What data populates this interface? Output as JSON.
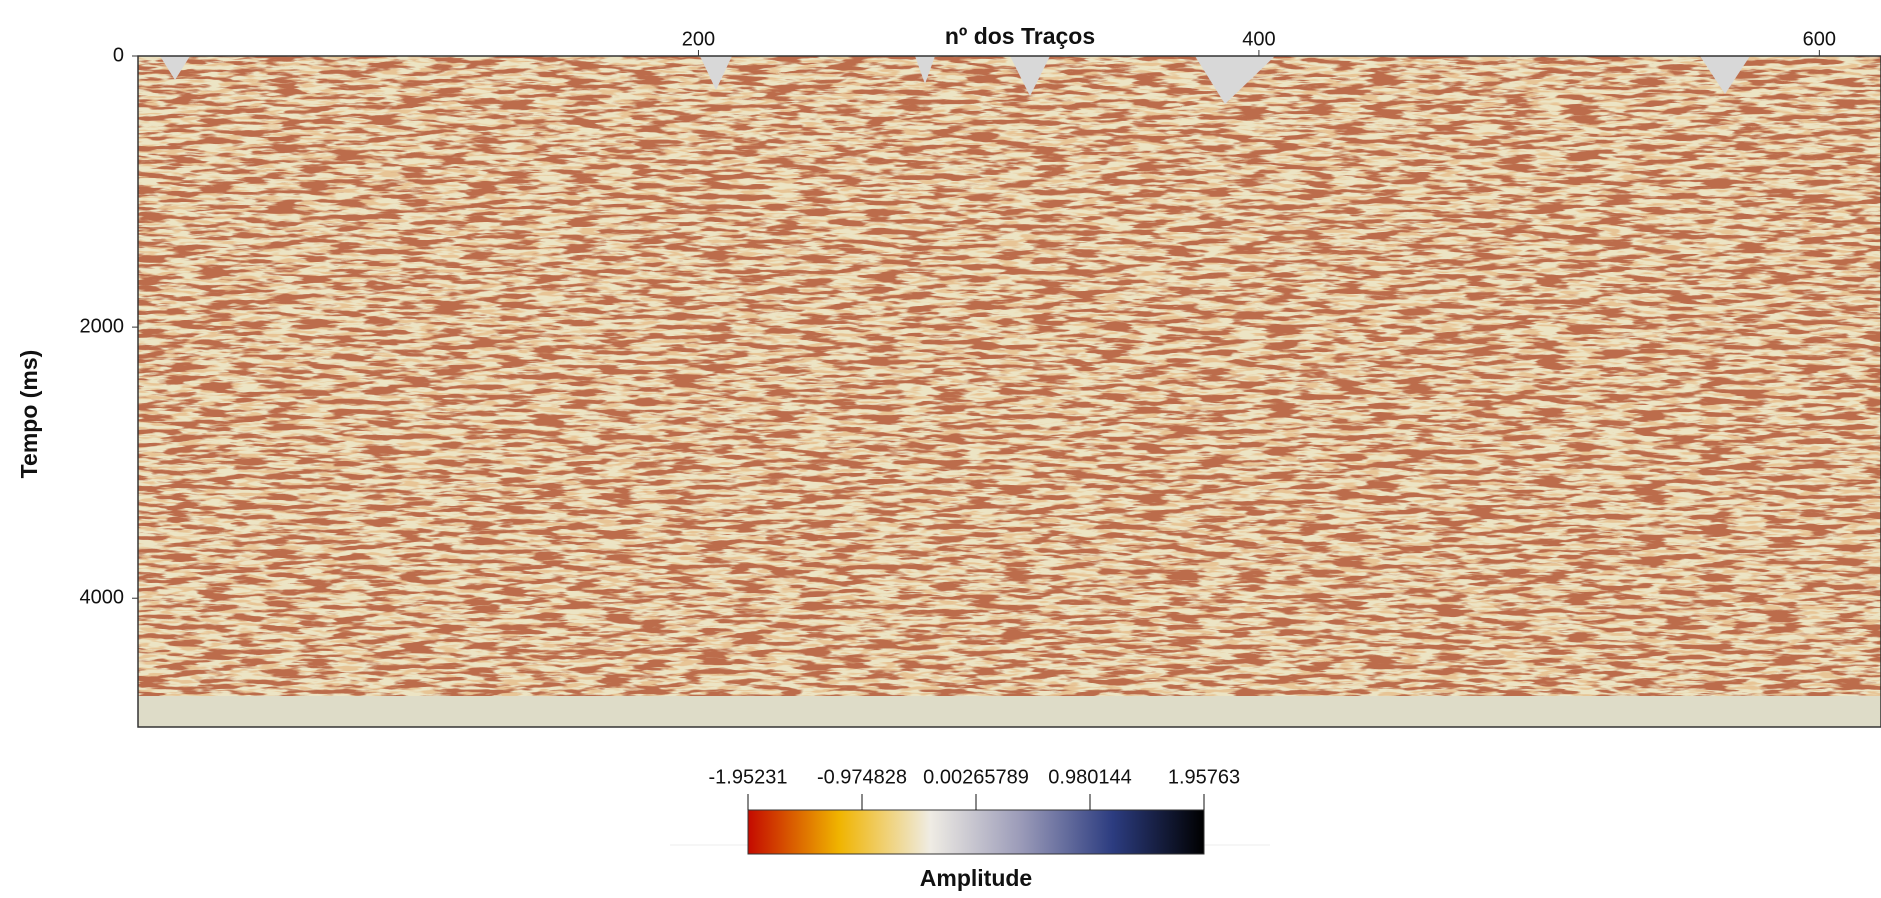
{
  "chart_data": {
    "type": "seismic-section",
    "title": "nº dos Traços",
    "y_label": "Tempo (ms)",
    "xlim": [
      0,
      622
    ],
    "xticks": [
      200,
      400,
      600
    ],
    "ylim": [
      0,
      4950
    ],
    "yticks": [
      0,
      2000,
      4000
    ],
    "colorbar": {
      "label": "Amplitude",
      "lim": [
        -1.95231,
        1.95763
      ],
      "ticks": [
        -1.95231,
        -0.974828,
        0.00265789,
        0.980144,
        1.95763
      ],
      "colors": [
        "#c40a00",
        "#f0b400",
        "#efece4",
        "#9a9ab8",
        "#2c3c80",
        "#000000"
      ]
    }
  }
}
